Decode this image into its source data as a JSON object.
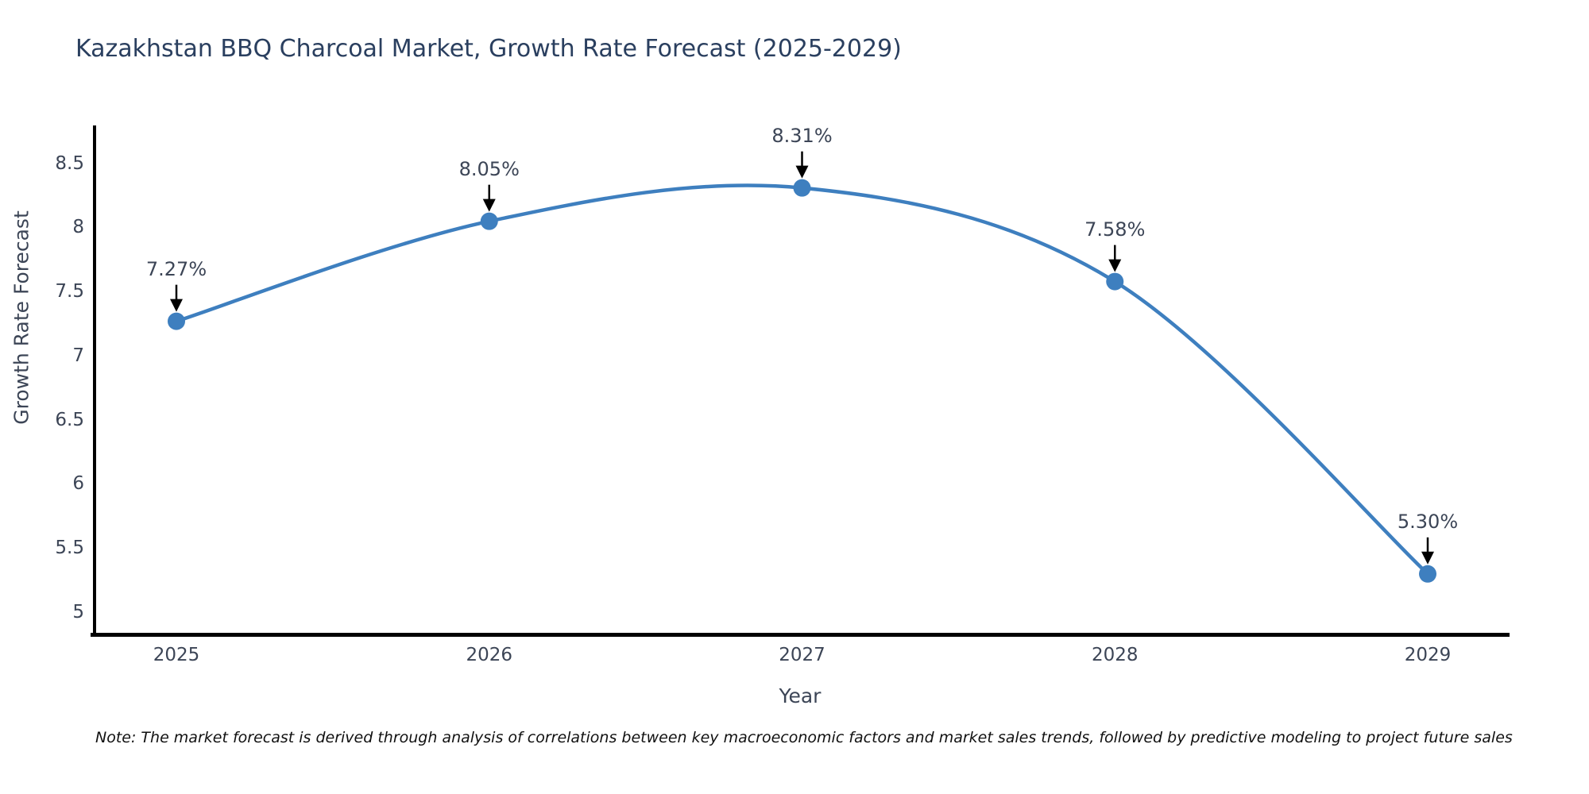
{
  "title": "Kazakhstan BBQ Charcoal Market, Growth Rate Forecast (2025-2029)",
  "note": "Note: The market forecast is derived through analysis of correlations between key macroeconomic factors and market sales trends, followed by predictive modeling to project future sales",
  "chart_data": {
    "type": "line",
    "title": "Kazakhstan BBQ Charcoal Market, Growth Rate Forecast (2025-2029)",
    "x": [
      2025,
      2026,
      2027,
      2028,
      2029
    ],
    "values": [
      7.27,
      8.05,
      8.31,
      7.58,
      5.3
    ],
    "point_labels": [
      "7.27%",
      "8.05%",
      "8.31%",
      "7.58%",
      "5.30%"
    ],
    "xlabel": "Year",
    "ylabel": "Growth Rate Forecast",
    "xtick_labels": [
      "2025",
      "2026",
      "2027",
      "2028",
      "2029"
    ],
    "ytick_values": [
      8.5,
      8,
      7.5,
      7,
      6.5,
      6,
      5.5,
      5
    ],
    "ytick_labels": [
      "8.5",
      "8",
      "7.5",
      "7",
      "6.5",
      "6",
      "5.5",
      "5"
    ],
    "ylim": [
      4.8,
      8.8
    ],
    "grid": false,
    "legend_position": "none",
    "line_color": "#3e7fbf",
    "marker_color": "#3e7fbf",
    "arrow_color": "#000000",
    "spine_color": "#000000",
    "smooth": true
  },
  "colors": {
    "title_text": "#2a3f5f",
    "axis_text": "#3c4556",
    "note_text": "#111111",
    "background": "#ffffff"
  }
}
